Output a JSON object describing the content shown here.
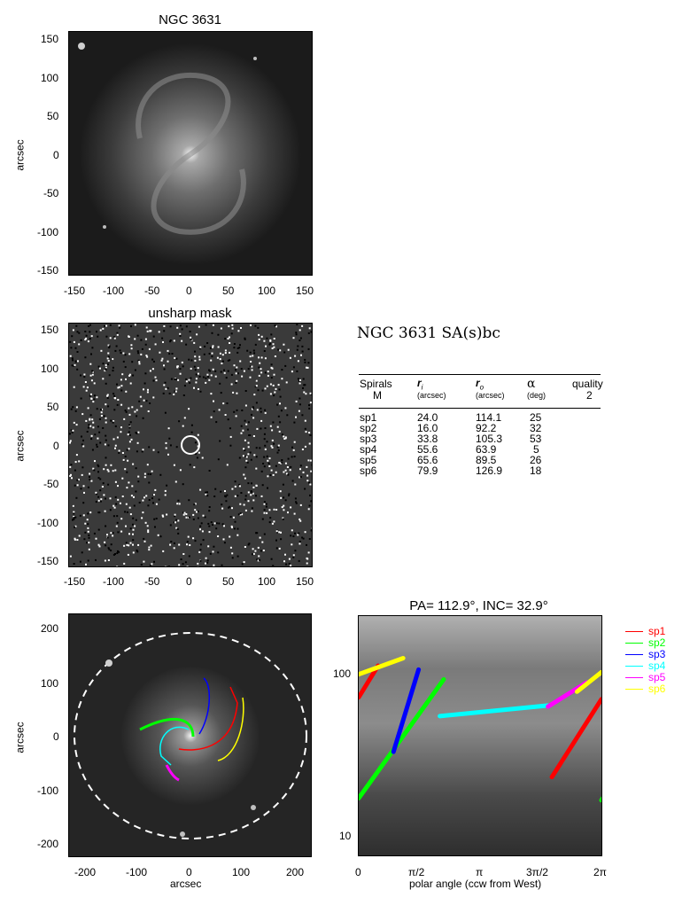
{
  "panel1": {
    "title": "NGC 3631",
    "ylabel": "arcsec",
    "xticks": [
      "-150",
      "-100",
      "-50",
      "0",
      "50",
      "100",
      "150"
    ],
    "yticks": [
      "150",
      "100",
      "50",
      "0",
      "-50",
      "-100",
      "-150"
    ]
  },
  "panel2": {
    "title": "unsharp mask",
    "ylabel": "arcsec",
    "xticks": [
      "-150",
      "-100",
      "-50",
      "0",
      "50",
      "100",
      "150"
    ],
    "yticks": [
      "150",
      "100",
      "50",
      "0",
      "-50",
      "-100",
      "-150"
    ]
  },
  "panel3": {
    "xlabel": "arcsec",
    "ylabel": "arcsec",
    "xticks": [
      "-200",
      "-100",
      "0",
      "100",
      "200"
    ],
    "yticks": [
      "200",
      "100",
      "0",
      "-100",
      "-200"
    ]
  },
  "info": {
    "title": "NGC 3631  SA(s)bc",
    "columns": {
      "c1": "Spirals",
      "c1sub": "M",
      "c2": "r",
      "c2i": "i",
      "c2sub": "(arcsec)",
      "c3": "r",
      "c3i": "o",
      "c3sub": "(arcsec)",
      "c4": "α",
      "c4sub": "(deg)",
      "c5": "quality",
      "c5sub": "2"
    },
    "rows": [
      {
        "name": "sp1",
        "ri": "24.0",
        "ro": "114.1",
        "alpha": "25"
      },
      {
        "name": "sp2",
        "ri": "16.0",
        "ro": "92.2",
        "alpha": "32"
      },
      {
        "name": "sp3",
        "ri": "33.8",
        "ro": "105.3",
        "alpha": "53"
      },
      {
        "name": "sp4",
        "ri": "55.6",
        "ro": "63.9",
        "alpha": "5"
      },
      {
        "name": "sp5",
        "ri": "65.6",
        "ro": "89.5",
        "alpha": "26"
      },
      {
        "name": "sp6",
        "ri": "79.9",
        "ro": "126.9",
        "alpha": "18"
      }
    ]
  },
  "chart_data": {
    "type": "line",
    "title": "PA= 112.9°, INC= 32.9°",
    "xlabel": "polar angle (ccw from West)",
    "ylabel": "",
    "xticks": [
      "0",
      "π/2",
      "π",
      "3π/2",
      "2π"
    ],
    "yticks": [
      "100",
      "10"
    ],
    "y_scale": "log",
    "xlim": [
      0,
      6.283
    ],
    "ylim": [
      7.5,
      230
    ],
    "series": [
      {
        "name": "sp1",
        "color": "#ff0000",
        "segments": [
          [
            [
              0.0,
              72
            ],
            [
              0.5,
              113
            ]
          ],
          [
            [
              5.0,
              23
            ],
            [
              6.283,
              70
            ]
          ]
        ]
      },
      {
        "name": "sp2",
        "color": "#00ff00",
        "segments": [
          [
            [
              0.0,
              17
            ],
            [
              2.2,
              93
            ]
          ],
          [
            [
              6.283,
              16.5
            ],
            [
              6.35,
              17.5
            ]
          ]
        ]
      },
      {
        "name": "sp3",
        "color": "#0000ff",
        "segments": [
          [
            [
              0.9,
              33
            ],
            [
              1.55,
              107
            ]
          ]
        ]
      },
      {
        "name": "sp4",
        "color": "#00ffff",
        "segments": [
          [
            [
              2.1,
              55
            ],
            [
              4.9,
              64
            ]
          ]
        ]
      },
      {
        "name": "sp5",
        "color": "#ff00ff",
        "segments": [
          [
            [
              4.9,
              63
            ],
            [
              5.9,
              89
            ]
          ]
        ]
      },
      {
        "name": "sp6",
        "color": "#ffff00",
        "segments": [
          [
            [
              0.0,
              100
            ],
            [
              1.15,
              126
            ]
          ],
          [
            [
              5.65,
              78
            ],
            [
              6.283,
              103
            ]
          ]
        ]
      }
    ]
  }
}
